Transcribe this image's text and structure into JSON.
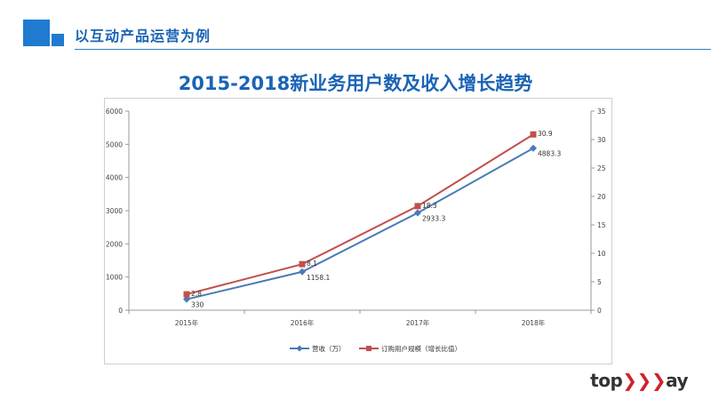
{
  "header": {
    "title": "以互动产品运营为例"
  },
  "chart_data": {
    "type": "line",
    "title": "2015-2018新业务用户数及收入增长趋势",
    "categories": [
      "2015年",
      "2016年",
      "2017年",
      "2018年"
    ],
    "y_left": {
      "ylim": [
        0,
        6000
      ],
      "ticks": [
        "0",
        "1000",
        "2000",
        "3000",
        "4000",
        "5000",
        "6000"
      ]
    },
    "y_right": {
      "ylim": [
        0,
        35
      ],
      "ticks": [
        "0",
        "5",
        "10",
        "15",
        "20",
        "25",
        "30",
        "35"
      ]
    },
    "series": [
      {
        "name": "营收（万）",
        "axis": "left",
        "color": "#4a7ab5",
        "marker": "diamond",
        "values": [
          330,
          1158.1,
          2933.3,
          4883.3
        ],
        "labels": [
          "330",
          "1158.1",
          "2933.3",
          "4883.3"
        ]
      },
      {
        "name": "订购用户规模（增长比值）",
        "axis": "right",
        "color": "#c0504d",
        "marker": "square",
        "values": [
          2.8,
          8.1,
          18.3,
          30.9
        ],
        "labels": [
          "2.8",
          "8.1",
          "18.3",
          "30.9"
        ]
      }
    ],
    "legend_position": "bottom",
    "grid": false
  },
  "logo": {
    "text_a": "top",
    "text_b": "ay"
  }
}
